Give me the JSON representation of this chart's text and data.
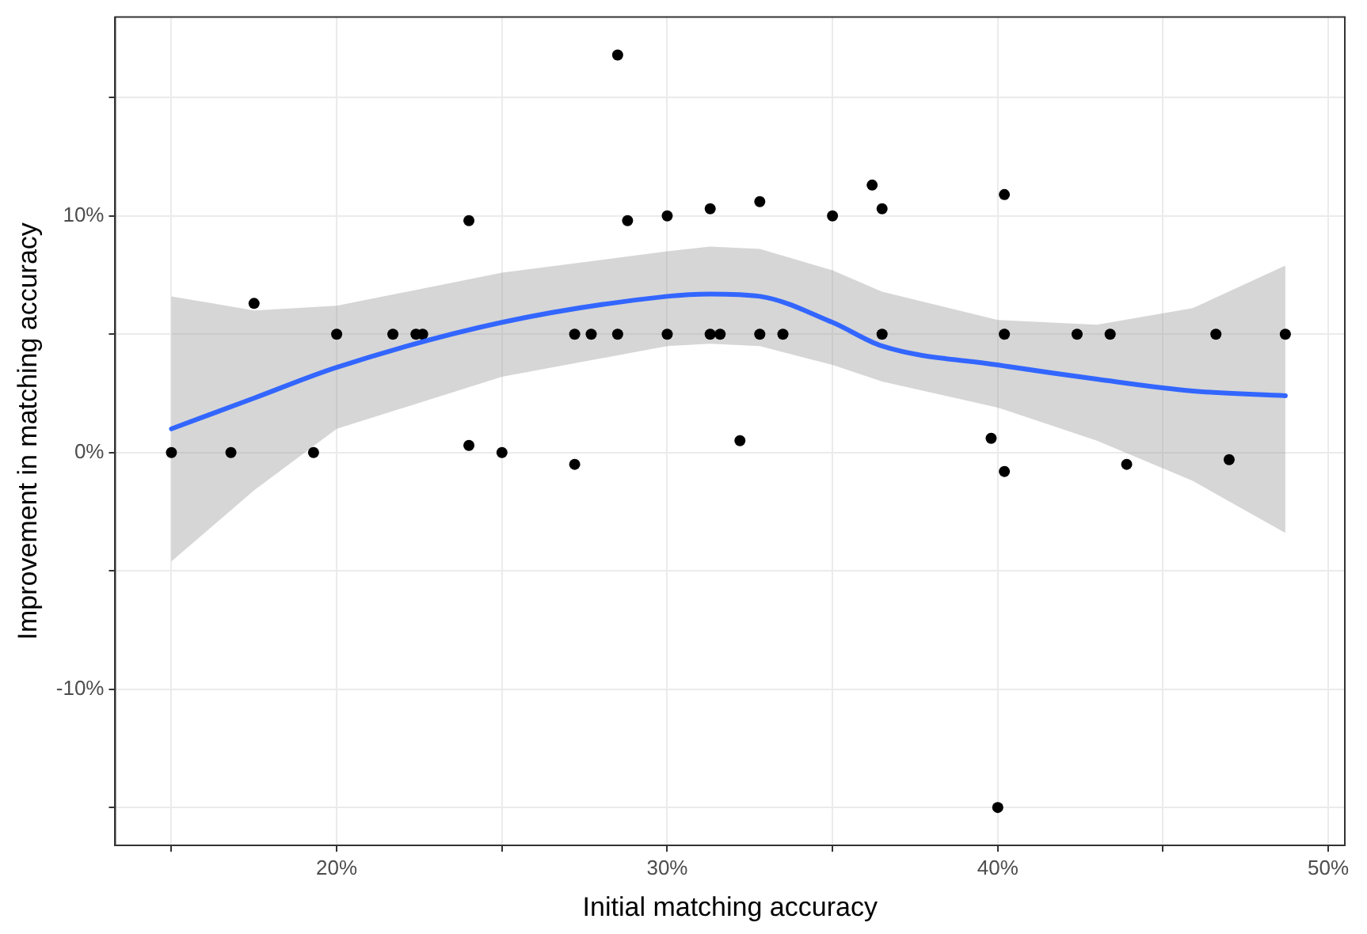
{
  "chart_data": {
    "type": "scatter",
    "xlabel": "Initial matching accuracy",
    "ylabel": "Improvement in matching accuracy",
    "xlim": [
      13.3,
      50.5
    ],
    "ylim": [
      -16.6,
      18.4
    ],
    "xticks": [
      {
        "value": 15,
        "label": null
      },
      {
        "value": 20,
        "label": "20%"
      },
      {
        "value": 25,
        "label": null
      },
      {
        "value": 30,
        "label": "30%"
      },
      {
        "value": 35,
        "label": null
      },
      {
        "value": 40,
        "label": "40%"
      },
      {
        "value": 45,
        "label": null
      },
      {
        "value": 50,
        "label": "50%"
      }
    ],
    "yticks": [
      {
        "value": -15,
        "label": null
      },
      {
        "value": -10,
        "label": "-10%"
      },
      {
        "value": -5,
        "label": null
      },
      {
        "value": 0,
        "label": "0%"
      },
      {
        "value": 5,
        "label": null
      },
      {
        "value": 10,
        "label": "10%"
      },
      {
        "value": 15,
        "label": null
      }
    ],
    "grid": true,
    "legend": false,
    "marker": "circle",
    "series": [
      {
        "type": "scatter",
        "color": "#000000",
        "x": [
          15.0,
          16.8,
          17.5,
          19.3,
          20.0,
          21.7,
          22.4,
          22.6,
          24.0,
          24.0,
          25.0,
          27.2,
          27.2,
          27.7,
          28.5,
          28.5,
          28.8,
          30.0,
          30.0,
          31.3,
          31.3,
          31.6,
          32.2,
          32.8,
          32.8,
          33.5,
          35.0,
          36.2,
          36.5,
          36.5,
          39.8,
          40.0,
          40.2,
          40.2,
          40.2,
          42.4,
          43.4,
          43.9,
          46.6,
          47.0,
          48.7
        ],
        "values": [
          0,
          0,
          6.3,
          0,
          5,
          5,
          5,
          5,
          9.8,
          0.3,
          0,
          5,
          -0.5,
          5,
          16.8,
          5,
          9.8,
          10.0,
          5,
          10.3,
          5,
          5,
          0.5,
          10.6,
          5,
          5,
          10.0,
          11.3,
          10.3,
          5,
          0.6,
          -15.0,
          10.9,
          5,
          -0.8,
          5,
          5,
          -0.5,
          5,
          -0.3,
          5
        ]
      },
      {
        "type": "line",
        "color": "#3366ff",
        "marker": "none",
        "x": [
          15.0,
          17.5,
          20.0,
          25.0,
          30.0,
          31.3,
          32.8,
          35.0,
          36.5,
          40.0,
          43.0,
          45.9,
          48.7
        ],
        "values": [
          1.0,
          2.3,
          3.6,
          5.5,
          6.6,
          6.7,
          6.6,
          5.5,
          4.5,
          3.7,
          3.1,
          2.6,
          2.4
        ],
        "lower": [
          -4.6,
          -1.6,
          1.0,
          3.2,
          4.5,
          4.6,
          4.5,
          3.7,
          3.0,
          1.9,
          0.5,
          -1.2,
          -3.4
        ],
        "upper": [
          6.6,
          6.0,
          6.2,
          7.6,
          8.5,
          8.7,
          8.6,
          7.7,
          6.8,
          5.6,
          5.4,
          6.1,
          7.9
        ]
      }
    ]
  }
}
